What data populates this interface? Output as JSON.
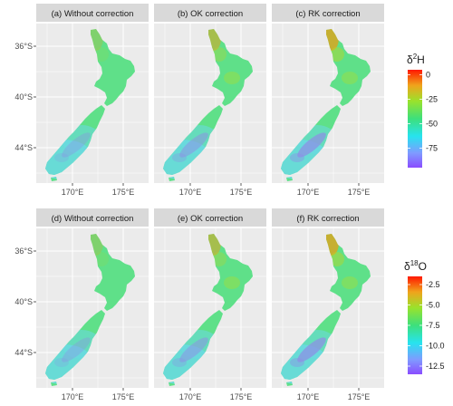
{
  "top_row": {
    "panels": [
      {
        "label": "(a) Without correction",
        "variant": "without"
      },
      {
        "label": "(b) OK correction",
        "variant": "ok"
      },
      {
        "label": "(c) RK correction",
        "variant": "rk"
      }
    ],
    "legend": {
      "title_main": "δ",
      "title_sup": "2",
      "title_tail": "H",
      "ticks": [
        "0",
        "-25",
        "-50",
        "-75"
      ],
      "range": [
        -95,
        5
      ]
    }
  },
  "bottom_row": {
    "panels": [
      {
        "label": "(d) Without correction",
        "variant": "without"
      },
      {
        "label": "(e) OK correction",
        "variant": "ok"
      },
      {
        "label": "(f) RK correction",
        "variant": "rk"
      }
    ],
    "legend": {
      "title_main": "δ",
      "title_sup": "18",
      "title_tail": "O",
      "ticks": [
        "-2.5",
        "-5.0",
        "-7.5",
        "-10.0",
        "-12.5"
      ],
      "range": [
        -13.5,
        -1.5
      ]
    }
  },
  "axes": {
    "y_ticks": [
      "36°S",
      "40°S",
      "44°S"
    ],
    "x_ticks": [
      "170°E",
      "175°E"
    ]
  },
  "colors": {
    "panel_bg": "#ebebeb",
    "strip_bg": "#d9d9d9",
    "grid": "#ffffff",
    "land_base": "#5fe089",
    "north_tip_warm": "#e0a31c",
    "south_cool": "#6ad9e4",
    "alps_purple": "#8f8ce6"
  }
}
